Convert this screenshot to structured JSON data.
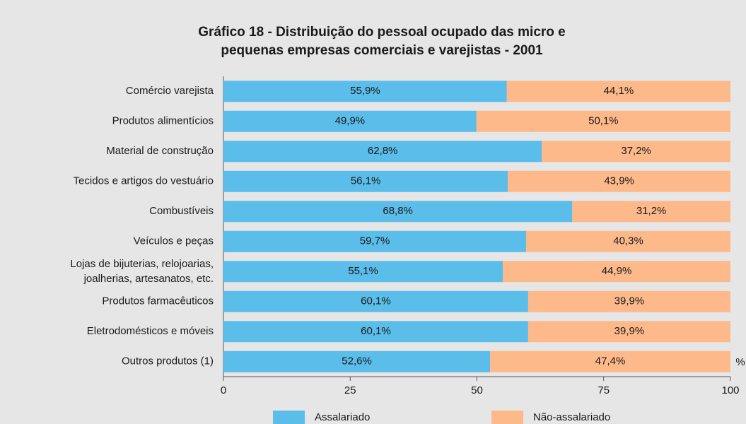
{
  "chart_data": {
    "type": "stacked_bar_horizontal",
    "title": "Gráfico 18 - Distribuição do pessoal ocupado das micro e\npequenas empresas comerciais e varejistas - 2001",
    "categories": [
      "Comércio varejista",
      "Produtos alimentícios",
      "Material de construção",
      "Tecidos e artigos do vestuário",
      "Combustíveis",
      "Veículos e peças",
      "Lojas de bijuterias, relojoarias,\njoalherias, artesanatos, etc.",
      "Produtos farmacêuticos",
      "Eletrodomésticos e móveis",
      "Outros produtos (1)"
    ],
    "series": [
      {
        "name": "Assalariado",
        "color": "#5bbde9",
        "values": [
          55.9,
          49.9,
          62.8,
          56.1,
          68.8,
          59.7,
          55.1,
          60.1,
          60.1,
          52.6
        ],
        "value_labels": [
          "55,9%",
          "49,9%",
          "62,8%",
          "56,1%",
          "68,8%",
          "59,7%",
          "55,1%",
          "60,1%",
          "60,1%",
          "52,6%"
        ]
      },
      {
        "name": "Não-assalariado",
        "color": "#fdb98a",
        "values": [
          44.1,
          50.1,
          37.2,
          43.9,
          31.2,
          40.3,
          44.9,
          39.9,
          39.9,
          47.4
        ],
        "value_labels": [
          "44,1%",
          "50,1%",
          "37,2%",
          "43,9%",
          "31,2%",
          "40,3%",
          "44,9%",
          "39,9%",
          "39,9%",
          "47,4%"
        ]
      }
    ],
    "xlabel": "%",
    "xlim": [
      0,
      100
    ],
    "xticks": [
      0,
      25,
      50,
      75,
      100
    ]
  }
}
